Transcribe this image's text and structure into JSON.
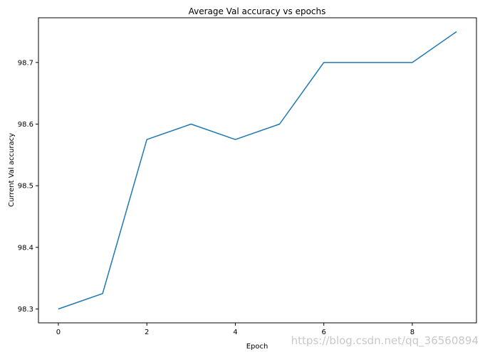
{
  "chart_data": {
    "type": "line",
    "title": "Average Val accuracy vs epochs",
    "xlabel": "Epoch",
    "ylabel": "Current Val accuracy",
    "x": [
      0,
      1,
      2,
      3,
      4,
      5,
      6,
      7,
      8,
      9
    ],
    "series": [
      {
        "values": [
          98.3,
          98.325,
          98.575,
          98.6,
          98.575,
          98.6,
          98.7,
          98.7,
          98.7,
          98.75
        ],
        "color": "#1f77b4"
      }
    ],
    "xlim": [
      -0.45,
      9.45
    ],
    "ylim": [
      98.2775,
      98.7725
    ],
    "xticks": [
      0,
      2,
      4,
      6,
      8
    ],
    "xtick_labels": [
      "0",
      "2",
      "4",
      "6",
      "8"
    ],
    "yticks": [
      98.3,
      98.4,
      98.5,
      98.6,
      98.7
    ],
    "ytick_labels": [
      "98.3",
      "98.4",
      "98.5",
      "98.6",
      "98.7"
    ],
    "grid": false,
    "legend": "none"
  },
  "watermark": "https://blog.csdn.net/qq_36560894"
}
